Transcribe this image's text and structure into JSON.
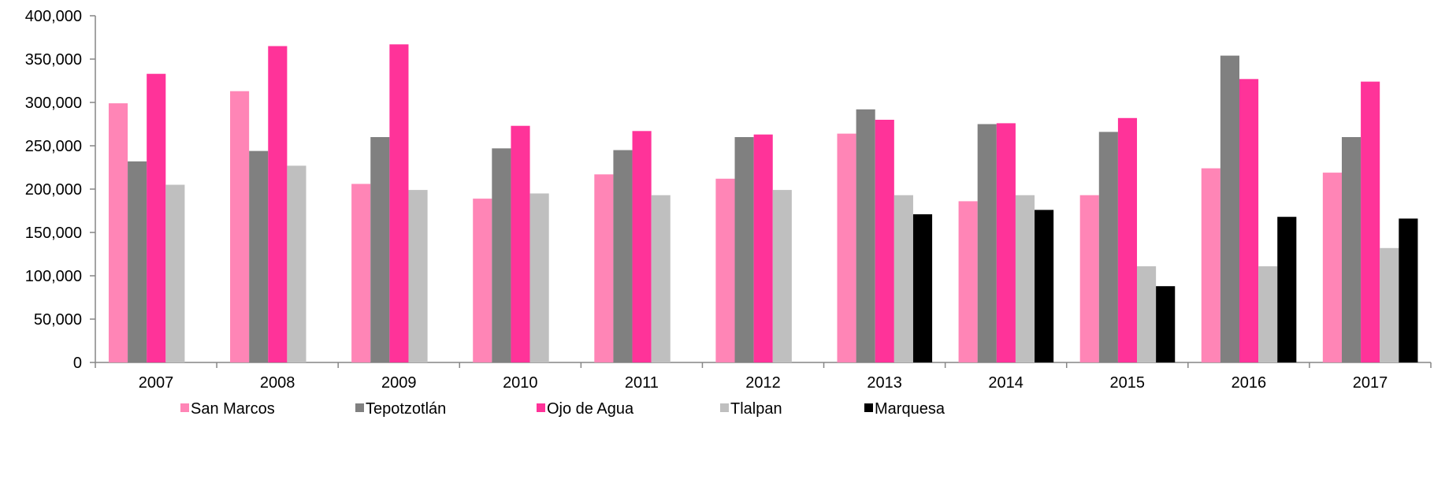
{
  "chart_data": {
    "type": "bar",
    "title": "",
    "xlabel": "",
    "ylabel": "",
    "ylim": [
      0,
      400000
    ],
    "y_ticks": [
      0,
      50000,
      100000,
      150000,
      200000,
      250000,
      300000,
      350000,
      400000
    ],
    "y_tick_labels": [
      "0",
      "50,000",
      "100,000",
      "150,000",
      "200,000",
      "250,000",
      "300,000",
      "350,000",
      "400,000"
    ],
    "grid": false,
    "legend_position": "bottom",
    "categories": [
      "2007",
      "2008",
      "2009",
      "2010",
      "2011",
      "2012",
      "2013",
      "2014",
      "2015",
      "2016",
      "2017"
    ],
    "series": [
      {
        "name": "San Marcos",
        "color": "#FF85B6",
        "values": [
          299000,
          313000,
          206000,
          189000,
          217000,
          212000,
          264000,
          186000,
          193000,
          224000,
          219000
        ]
      },
      {
        "name": "Tepotzotlán",
        "color": "#808080",
        "values": [
          232000,
          244000,
          260000,
          247000,
          245000,
          260000,
          292000,
          275000,
          266000,
          354000,
          260000
        ]
      },
      {
        "name": "Ojo de Agua",
        "color": "#FF3399",
        "values": [
          333000,
          365000,
          367000,
          273000,
          267000,
          263000,
          280000,
          276000,
          282000,
          327000,
          324000
        ]
      },
      {
        "name": "Tlalpan",
        "color": "#BFBFBF",
        "values": [
          205000,
          227000,
          199000,
          195000,
          193000,
          199000,
          193000,
          193000,
          111000,
          111000,
          132000
        ]
      },
      {
        "name": "Marquesa",
        "color": "#000000",
        "values": [
          null,
          null,
          null,
          null,
          null,
          null,
          171000,
          176000,
          88000,
          168000,
          166000
        ]
      }
    ]
  }
}
